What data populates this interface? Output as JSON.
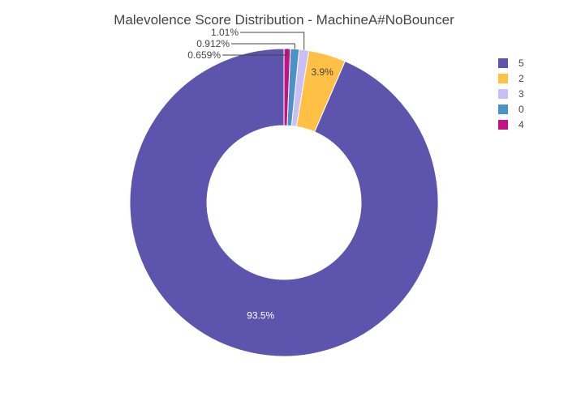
{
  "chart_data": {
    "type": "pie",
    "hole": true,
    "title": "Malevolence Score Distribution - MachineA#NoBouncer",
    "slices": [
      {
        "label": "5",
        "value": 93.5,
        "text": "93.5%",
        "color": "#5c54ad"
      },
      {
        "label": "2",
        "value": 3.9,
        "text": "3.9%",
        "color": "#ffc145"
      },
      {
        "label": "3",
        "value": 1.01,
        "text": "1.01%",
        "color": "#c9bff4"
      },
      {
        "label": "0",
        "value": 0.912,
        "text": "0.912%",
        "color": "#4b92c8"
      },
      {
        "label": "4",
        "value": 0.659,
        "text": "0.659%",
        "color": "#c21384"
      }
    ],
    "legend_order": [
      "5",
      "2",
      "3",
      "0",
      "4"
    ],
    "legend_position": "top-right"
  }
}
